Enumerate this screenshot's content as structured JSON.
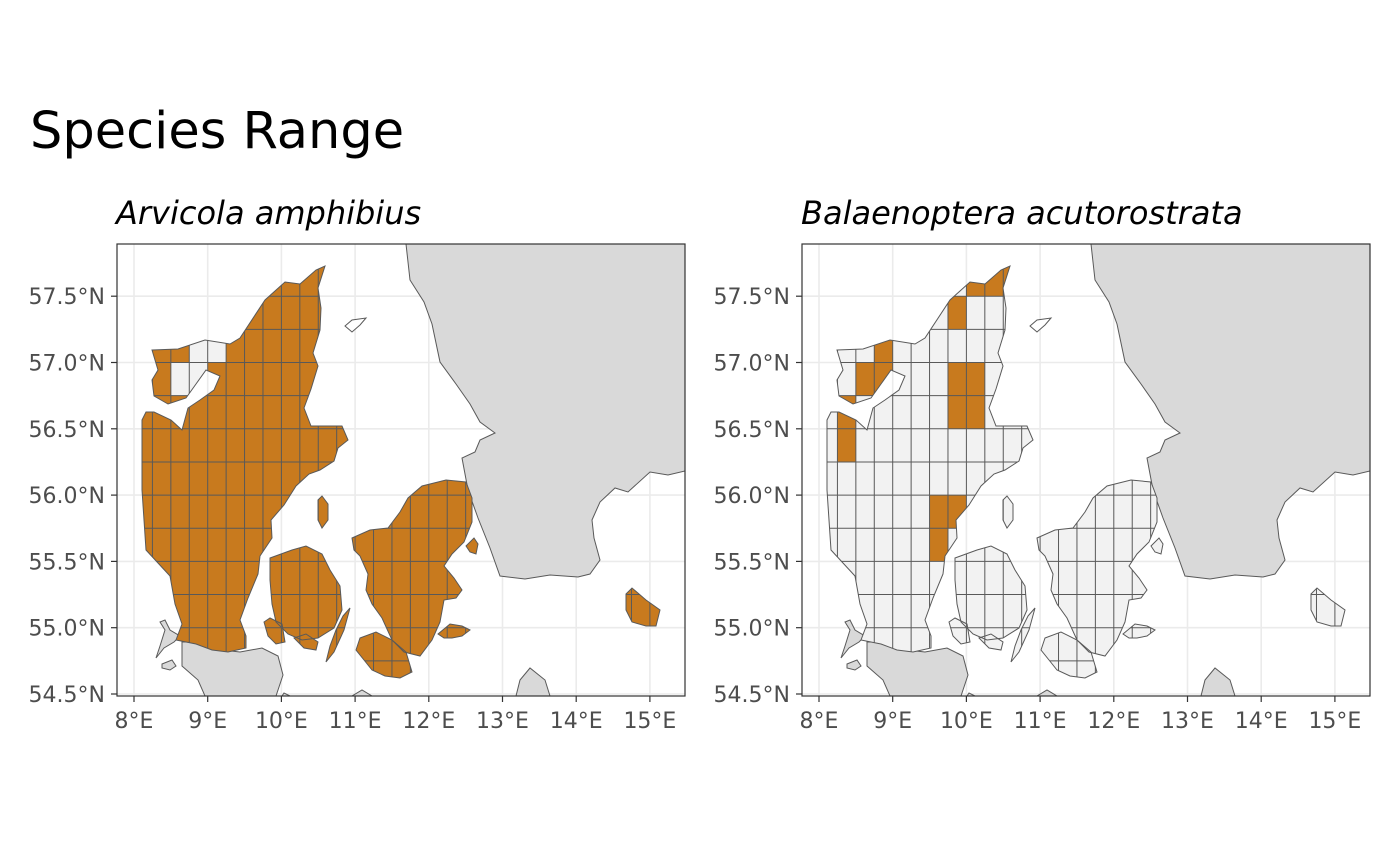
{
  "title": "Species Range",
  "colors": {
    "presence": "#C87A1E",
    "absence": "#F2F2F2",
    "land": "#D9D9D9",
    "border": "#595959",
    "gridline": "#EBEBEB",
    "axis_text": "#4D4D4D"
  },
  "axes": {
    "x_ticks": [
      "8°E",
      "9°E",
      "10°E",
      "11°E",
      "12°E",
      "13°E",
      "14°E",
      "15°E"
    ],
    "y_ticks": [
      "54.5°N",
      "55.0°N",
      "55.5°N",
      "56.0°N",
      "56.5°N",
      "57.0°N",
      "57.5°N"
    ]
  },
  "panels": [
    {
      "species": "Arvicola amphibius",
      "range_mode": "nearly-all-cells-present",
      "absent_cells": [
        [
          8.5,
          56.75
        ],
        [
          8.75,
          56.75
        ],
        [
          8.75,
          57.0
        ],
        [
          9.0,
          57.0
        ],
        [
          11.0,
          55.75
        ],
        [
          12.5,
          55.0
        ]
      ]
    },
    {
      "species": "Balaenoptera acutorostrata",
      "range_mode": "few-cells-present",
      "present_cells": [
        [
          8.5,
          56.75
        ],
        [
          8.75,
          56.75
        ],
        [
          8.75,
          57.0
        ],
        [
          8.25,
          56.25
        ],
        [
          8.25,
          56.5
        ],
        [
          9.75,
          57.25
        ],
        [
          10.0,
          57.5
        ],
        [
          10.25,
          57.5
        ],
        [
          10.5,
          57.5
        ],
        [
          9.75,
          56.75
        ],
        [
          9.75,
          56.5
        ],
        [
          10.0,
          56.75
        ],
        [
          10.0,
          56.5
        ],
        [
          9.5,
          55.75
        ],
        [
          9.5,
          55.5
        ],
        [
          9.75,
          55.75
        ]
      ]
    }
  ]
}
